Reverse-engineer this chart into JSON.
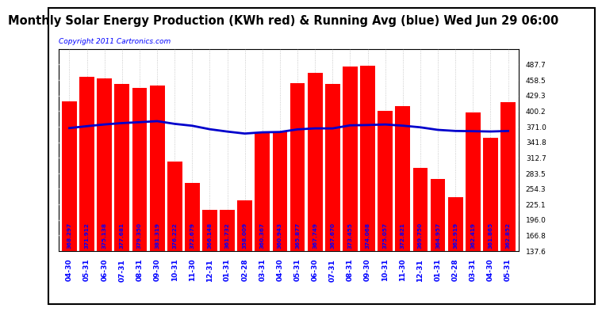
{
  "title": "Monthly Solar Energy Production (KWh red) & Running Avg (blue) Wed Jun 29 06:00",
  "copyright": "Copyright 2011 Cartronics.com",
  "categories": [
    "04-30",
    "05-31",
    "06-30",
    "07-31",
    "08-31",
    "09-30",
    "10-31",
    "11-30",
    "12-31",
    "01-31",
    "02-28",
    "03-31",
    "04-30",
    "05-31",
    "06-30",
    "07-31",
    "08-31",
    "09-30",
    "10-31",
    "11-30",
    "12-31",
    "01-31",
    "02-28",
    "03-31",
    "04-30",
    "05-31"
  ],
  "bar_values": [
    418.0,
    465.0,
    462.0,
    451.0,
    444.0,
    448.0,
    305.0,
    265.0,
    215.0,
    215.0,
    232.0,
    360.0,
    362.0,
    453.0,
    472.0,
    451.0,
    484.0,
    486.0,
    400.0,
    410.0,
    293.0,
    272.0,
    238.0,
    398.0,
    350.0,
    417.0
  ],
  "running_avg": [
    368.297,
    371.912,
    375.138,
    377.681,
    379.35,
    381.319,
    376.222,
    372.679,
    366.148,
    361.732,
    358.009,
    360.367,
    360.943,
    365.877,
    367.749,
    367.67,
    373.455,
    374.068,
    375.057,
    372.821,
    369.75,
    364.957,
    362.919,
    362.419,
    361.865,
    362.852
  ],
  "bar_color": "#ff0000",
  "line_color": "#0000cc",
  "bg_color": "#ffffff",
  "plot_bg_color": "#ffffff",
  "h_grid_color": "#ffffff",
  "v_grid_color": "#bbbbbb",
  "border_color": "#000000",
  "ylim_min": 137.6,
  "ylim_max": 516.8,
  "yticks": [
    137.6,
    166.8,
    196.0,
    225.1,
    254.3,
    283.5,
    312.7,
    341.8,
    371.0,
    400.2,
    429.3,
    458.5,
    487.7
  ],
  "title_fontsize": 10.5,
  "copyright_fontsize": 6.5,
  "tick_label_fontsize": 6.5,
  "value_label_fontsize": 5.2
}
